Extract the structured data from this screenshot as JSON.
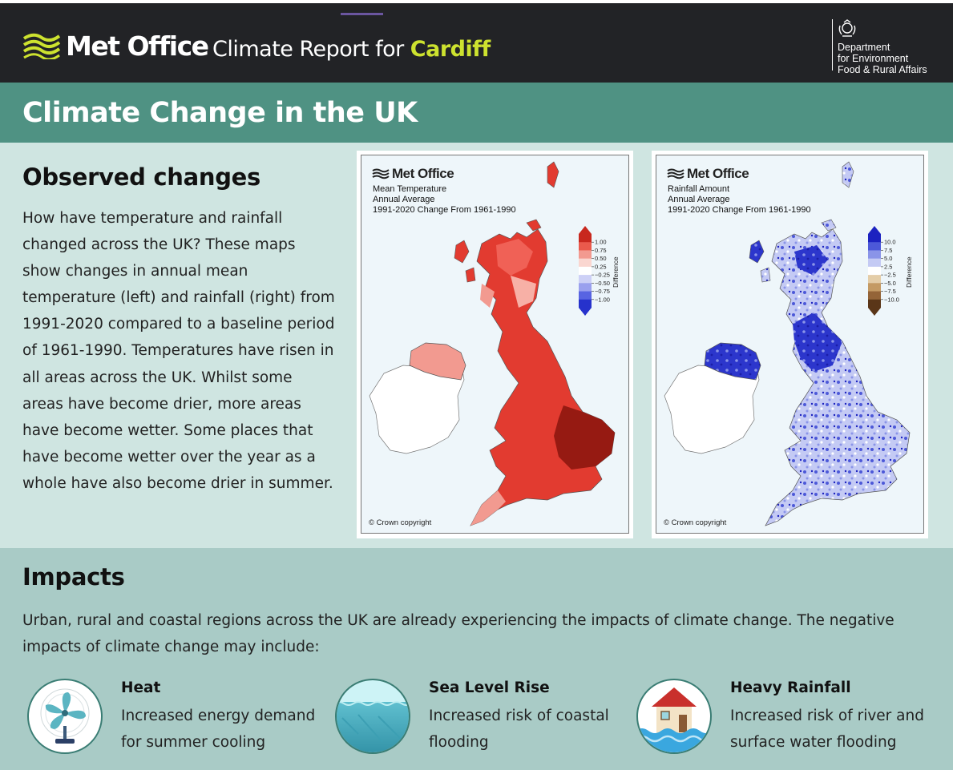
{
  "header": {
    "brand": "Met Office",
    "report_prefix": "Climate Report for ",
    "city": "Cardiff",
    "defra_lines": [
      "Department",
      "for Environment",
      "Food & Rural Affairs"
    ]
  },
  "band": {
    "title": "Climate Change in the UK"
  },
  "observed": {
    "title": "Observed changes",
    "body": "How have temperature and rainfall changed across the UK? These maps show changes in annual mean temperature (left) and rainfall (right) from 1991-2020 compared to a baseline period of 1961-1990. Temperatures have risen in all areas across the UK. Whilst some areas have become drier, more areas have become wetter. Some places that have become wetter over the year as a whole have also become drier in summer."
  },
  "maps": {
    "temperature": {
      "brand": "Met Office",
      "lines": [
        "Mean Temperature",
        "Annual Average",
        "1991-2020 Change From 1961-1990"
      ],
      "legend_title": "Difference",
      "legend_labels": [
        "1.00",
        "0.75",
        "0.50",
        "0.25",
        "−0.25",
        "−0.50",
        "−0.75",
        "−1.00"
      ],
      "legend_colors": [
        "#c8281e",
        "#ea5a4c",
        "#f29a90",
        "#fad6d0",
        "#ffffff",
        "#cdd0f6",
        "#9aa0ee",
        "#5864e2",
        "#2632cc"
      ],
      "copyright": "© Crown copyright"
    },
    "rainfall": {
      "brand": "Met Office",
      "lines": [
        "Rainfall Amount",
        "Annual Average",
        "1991-2020 Change From 1961-1990"
      ],
      "legend_title": "Difference",
      "legend_labels": [
        "10.0",
        "7.5",
        "5.0",
        "2.5",
        "−2.5",
        "−5.0",
        "−7.5",
        "−10.0"
      ],
      "legend_colors": [
        "#1c22c0",
        "#4c58d8",
        "#8a94e8",
        "#c4caf4",
        "#ffffff",
        "#e4cda8",
        "#c49a64",
        "#946438",
        "#5a3618"
      ],
      "copyright": "© Crown copyright"
    }
  },
  "impacts": {
    "title": "Impacts",
    "body": "Urban, rural and coastal regions across the UK are already experiencing the impacts of climate change. The negative impacts of climate change may include:",
    "items": [
      {
        "icon": "fan-icon",
        "title": "Heat",
        "desc": "Increased energy demand for summer cooling"
      },
      {
        "icon": "sea-wave-icon",
        "title": "Sea Level Rise",
        "desc": "Increased risk of coastal flooding"
      },
      {
        "icon": "flooded-house-icon",
        "title": "Heavy Rainfall",
        "desc": "Increased risk of river and surface water flooding"
      }
    ]
  }
}
